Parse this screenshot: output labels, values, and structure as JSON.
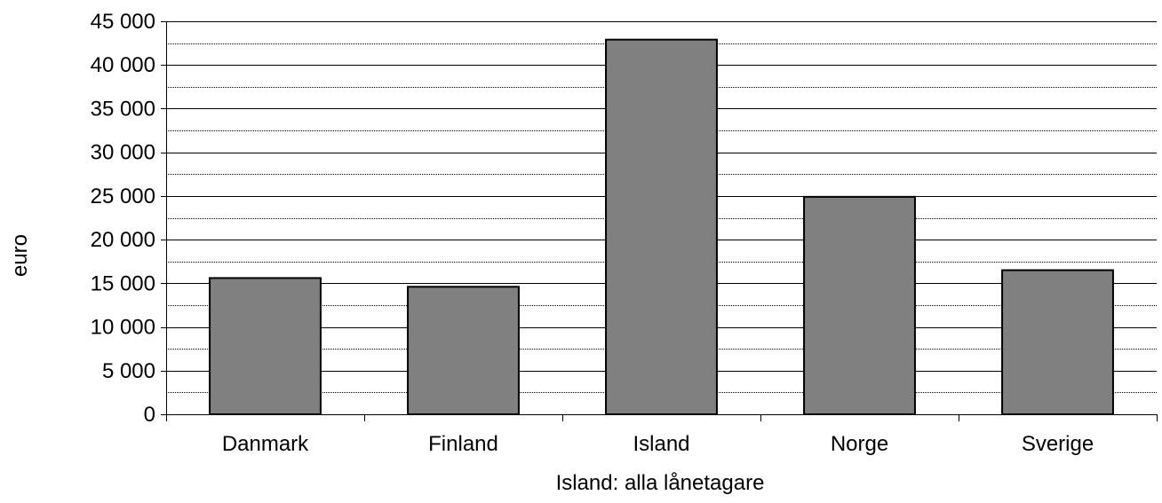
{
  "chart_data": {
    "type": "bar",
    "title": "",
    "xlabel": "Island: alla lånetagare",
    "ylabel": "euro",
    "categories": [
      "Danmark",
      "Finland",
      "Island",
      "Norge",
      "Sverige"
    ],
    "values": [
      15600,
      14600,
      42900,
      24900,
      16500
    ],
    "ylim": [
      0,
      45000
    ],
    "yticks": [
      0,
      5000,
      10000,
      15000,
      20000,
      25000,
      30000,
      35000,
      40000,
      45000
    ],
    "ytick_labels": [
      "0",
      "5 000",
      "10 000",
      "15 000",
      "20 000",
      "25 000",
      "30 000",
      "35 000",
      "40 000",
      "45 000"
    ],
    "minor_gridlines": [
      2500,
      7500,
      12500,
      17500,
      22500,
      27500,
      32500,
      37500,
      42500
    ],
    "grid": true,
    "legend": "none",
    "colors": {
      "bar_fill": "#808080",
      "bar_stroke": "#000000",
      "major_grid": "#000000",
      "minor_grid": "#000000"
    }
  }
}
